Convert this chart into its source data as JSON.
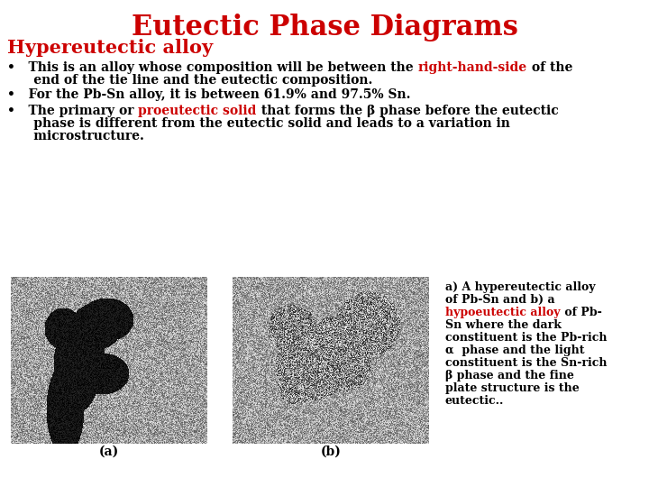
{
  "title": "Eutectic Phase Diagrams",
  "title_color": "#cc0000",
  "title_fontsize": 22,
  "subtitle": "Hypereutectic alloy",
  "subtitle_color": "#cc0000",
  "subtitle_fontsize": 15,
  "bg_color": "#ffffff",
  "bullet_fs": 10,
  "bullet1_pre": "•   This is an alloy whose composition will be between the ",
  "bullet1_highlight": "right-hand-side",
  "bullet1_post": " of the",
  "bullet1_line2": "      end of the tie line and the eutectic composition.",
  "bullet2": "•   For the Pb-Sn alloy, it is between 61.9% and 97.5% Sn.",
  "bullet3_pre": "•   The primary or ",
  "bullet3_highlight": "proeutectic solid",
  "bullet3_post": " that forms the β phase before the eutectic",
  "bullet3_line2": "      phase is different from the eutectic solid and leads to a variation in",
  "bullet3_line3": "      microstructure.",
  "highlight_color": "#cc0000",
  "text_color": "#000000",
  "cap_fs": 9,
  "cap_line1": "a) A hypereutectic alloy",
  "cap_line2": "of Pb-Sn and b) a",
  "cap_highlight": "hypoeutectic alloy",
  "cap_post": " of Pb-",
  "cap_line4": "Sn where the dark",
  "cap_line5": "constituent is the Pb-rich",
  "cap_line6": "α  phase and the light",
  "cap_line7": "constituent is the Sn-rich",
  "cap_line8": "β phase and the fine",
  "cap_line9": "plate structure is the",
  "cap_line10": "eutectic..",
  "img_a_label": "(a)",
  "img_b_label": "(b)"
}
